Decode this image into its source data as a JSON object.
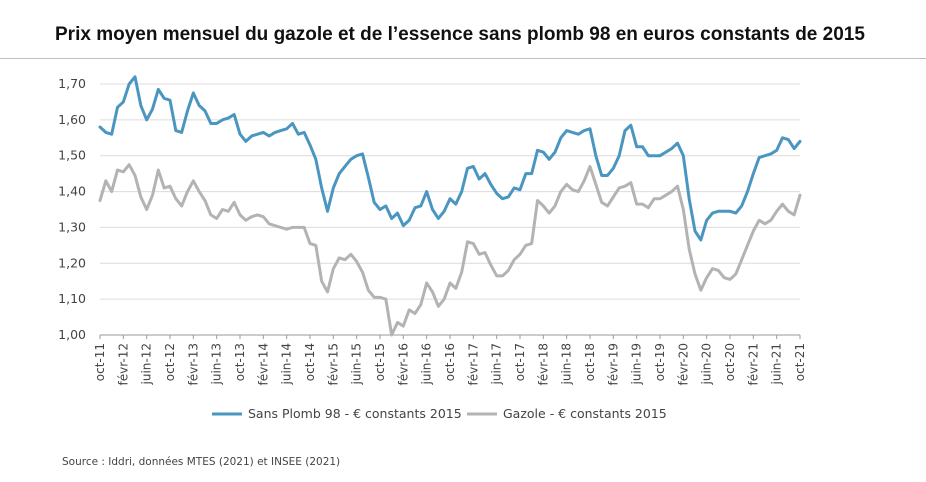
{
  "title": "Prix moyen mensuel du gazole et de l’essence sans plomb 98 en euros constants de 2015",
  "source": "Source : Iddri, données MTES (2021) et INSEE (2021)",
  "colors": {
    "sans_plomb": "#4a96c0",
    "gazole": "#b3b3b3",
    "grid": "#dcdcdc",
    "axis": "#9a9a9a"
  },
  "chart_data": {
    "type": "line",
    "title": "Prix moyen mensuel du gazole et de l’essence sans plomb 98 en euros constants de 2015",
    "xlabel": "",
    "ylabel": "",
    "ylim": [
      1.0,
      1.7
    ],
    "yticks": [
      "1,00",
      "1,10",
      "1,20",
      "1,30",
      "1,40",
      "1,50",
      "1,60",
      "1,70"
    ],
    "grid": true,
    "legend": "bottom",
    "x_start": "oct-11",
    "xtick_labels": [
      "oct-11",
      "févr-12",
      "juin-12",
      "oct-12",
      "févr-13",
      "juin-13",
      "oct-13",
      "févr-14",
      "juin-14",
      "oct-14",
      "févr-15",
      "juin-15",
      "oct-15",
      "févr-16",
      "juin-16",
      "oct-16",
      "févr-17",
      "juin-17",
      "oct-17",
      "févr-18",
      "juin-18",
      "oct-18",
      "févr-19",
      "juin-19",
      "oct-19",
      "févr-20",
      "juin-20",
      "oct-20",
      "févr-21",
      "juin-21",
      "oct-21"
    ],
    "series": [
      {
        "name": "Sans Plomb 98 - € constants 2015",
        "color": "#4a96c0",
        "values": [
          1.58,
          1.565,
          1.56,
          1.635,
          1.65,
          1.7,
          1.72,
          1.64,
          1.6,
          1.63,
          1.685,
          1.66,
          1.655,
          1.57,
          1.565,
          1.625,
          1.675,
          1.64,
          1.625,
          1.59,
          1.59,
          1.6,
          1.605,
          1.615,
          1.56,
          1.54,
          1.555,
          1.56,
          1.565,
          1.555,
          1.565,
          1.57,
          1.575,
          1.59,
          1.56,
          1.565,
          1.53,
          1.49,
          1.41,
          1.345,
          1.41,
          1.45,
          1.47,
          1.49,
          1.5,
          1.505,
          1.44,
          1.37,
          1.35,
          1.36,
          1.325,
          1.34,
          1.305,
          1.32,
          1.355,
          1.36,
          1.4,
          1.35,
          1.325,
          1.345,
          1.38,
          1.365,
          1.4,
          1.465,
          1.47,
          1.435,
          1.45,
          1.42,
          1.395,
          1.38,
          1.385,
          1.41,
          1.405,
          1.45,
          1.45,
          1.515,
          1.51,
          1.49,
          1.51,
          1.55,
          1.57,
          1.565,
          1.56,
          1.57,
          1.575,
          1.5,
          1.445,
          1.445,
          1.465,
          1.5,
          1.57,
          1.585,
          1.525,
          1.525,
          1.5,
          1.5,
          1.5,
          1.51,
          1.52,
          1.535,
          1.5,
          1.38,
          1.29,
          1.265,
          1.32,
          1.34,
          1.345,
          1.345,
          1.345,
          1.34,
          1.36,
          1.4,
          1.45,
          1.495,
          1.5,
          1.505,
          1.515,
          1.55,
          1.545,
          1.52,
          1.54
        ]
      },
      {
        "name": "Gazole - € constants 2015",
        "color": "#b3b3b3",
        "values": [
          1.375,
          1.43,
          1.4,
          1.46,
          1.455,
          1.475,
          1.445,
          1.385,
          1.35,
          1.39,
          1.46,
          1.41,
          1.415,
          1.38,
          1.36,
          1.4,
          1.43,
          1.4,
          1.375,
          1.335,
          1.325,
          1.35,
          1.345,
          1.37,
          1.335,
          1.32,
          1.33,
          1.335,
          1.33,
          1.31,
          1.305,
          1.3,
          1.295,
          1.3,
          1.3,
          1.3,
          1.255,
          1.25,
          1.15,
          1.12,
          1.185,
          1.215,
          1.21,
          1.225,
          1.205,
          1.175,
          1.125,
          1.105,
          1.105,
          1.1,
          1.0,
          1.035,
          1.025,
          1.07,
          1.06,
          1.085,
          1.145,
          1.12,
          1.08,
          1.1,
          1.145,
          1.13,
          1.175,
          1.26,
          1.255,
          1.225,
          1.23,
          1.195,
          1.165,
          1.165,
          1.18,
          1.21,
          1.225,
          1.25,
          1.255,
          1.375,
          1.36,
          1.34,
          1.36,
          1.4,
          1.42,
          1.405,
          1.4,
          1.43,
          1.47,
          1.42,
          1.37,
          1.36,
          1.385,
          1.41,
          1.415,
          1.425,
          1.365,
          1.365,
          1.355,
          1.38,
          1.38,
          1.39,
          1.4,
          1.415,
          1.35,
          1.24,
          1.17,
          1.125,
          1.16,
          1.185,
          1.18,
          1.16,
          1.155,
          1.17,
          1.21,
          1.25,
          1.29,
          1.32,
          1.31,
          1.32,
          1.345,
          1.365,
          1.345,
          1.335,
          1.39
        ]
      }
    ]
  }
}
